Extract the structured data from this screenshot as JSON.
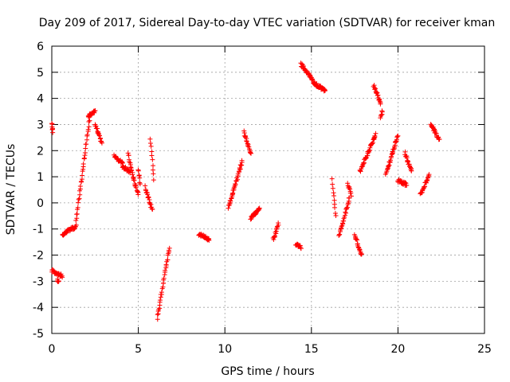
{
  "chart_data": {
    "type": "scatter",
    "title": "Day 209 of 2017, Sidereal Day-to-day VTEC variation (SDTVAR) for receiver kman",
    "xlabel": "GPS time / hours",
    "ylabel": "SDTVAR / TECUs",
    "xlim": [
      0,
      25
    ],
    "ylim": [
      -5,
      6
    ],
    "xticks": [
      0,
      5,
      10,
      15,
      20,
      25
    ],
    "xtick_labels": [
      "0",
      "5",
      "10",
      "15",
      "20",
      "25"
    ],
    "yticks": [
      -5,
      -4,
      -3,
      -2,
      -1,
      0,
      1,
      2,
      3,
      4,
      5,
      6
    ],
    "ytick_labels": [
      "-5",
      "-4",
      "-3",
      "-2",
      "-1",
      "0",
      "1",
      "2",
      "3",
      "4",
      "5",
      "6"
    ],
    "grid": true,
    "marker": "+",
    "marker_color": "#ff0000",
    "segments": [
      {
        "x0": 0.0,
        "x1": 0.05,
        "y0": 3.05,
        "y1": 2.7
      },
      {
        "x0": 0.0,
        "x1": 0.6,
        "y0": -2.6,
        "y1": -2.8
      },
      {
        "x0": 0.3,
        "x1": 0.4,
        "y0": -2.95,
        "y1": -3.05
      },
      {
        "x0": 0.6,
        "x1": 1.4,
        "y0": -1.2,
        "y1": -0.9
      },
      {
        "x0": 1.4,
        "x1": 2.2,
        "y0": -0.7,
        "y1": 3.3
      },
      {
        "x0": 2.1,
        "x1": 2.5,
        "y0": 3.3,
        "y1": 3.5
      },
      {
        "x0": 2.5,
        "x1": 2.9,
        "y0": 3.0,
        "y1": 2.3
      },
      {
        "x0": 3.6,
        "x1": 4.1,
        "y0": 1.8,
        "y1": 1.5
      },
      {
        "x0": 4.1,
        "x1": 4.5,
        "y0": 1.4,
        "y1": 1.2
      },
      {
        "x0": 4.4,
        "x1": 4.7,
        "y0": 1.9,
        "y1": 1.0
      },
      {
        "x0": 4.7,
        "x1": 5.0,
        "y0": 1.0,
        "y1": 0.3
      },
      {
        "x0": 5.0,
        "x1": 5.1,
        "y0": 1.3,
        "y1": 0.7
      },
      {
        "x0": 5.4,
        "x1": 5.8,
        "y0": 0.6,
        "y1": -0.3
      },
      {
        "x0": 5.7,
        "x1": 5.9,
        "y0": 2.5,
        "y1": 0.9
      },
      {
        "x0": 6.1,
        "x1": 6.8,
        "y0": -4.4,
        "y1": -1.7
      },
      {
        "x0": 8.5,
        "x1": 9.1,
        "y0": -1.2,
        "y1": -1.4
      },
      {
        "x0": 10.2,
        "x1": 11.0,
        "y0": -0.2,
        "y1": 1.6
      },
      {
        "x0": 11.1,
        "x1": 11.5,
        "y0": 2.7,
        "y1": 1.9
      },
      {
        "x0": 11.5,
        "x1": 12.0,
        "y0": -0.6,
        "y1": -0.2
      },
      {
        "x0": 12.8,
        "x1": 13.1,
        "y0": -1.4,
        "y1": -0.8
      },
      {
        "x0": 14.1,
        "x1": 14.4,
        "y0": -1.6,
        "y1": -1.7
      },
      {
        "x0": 14.4,
        "x1": 15.1,
        "y0": 5.3,
        "y1": 4.7
      },
      {
        "x0": 15.1,
        "x1": 15.8,
        "y0": 4.6,
        "y1": 4.3
      },
      {
        "x0": 16.2,
        "x1": 16.4,
        "y0": 0.9,
        "y1": -0.5
      },
      {
        "x0": 16.6,
        "x1": 17.2,
        "y0": -1.3,
        "y1": 0.2
      },
      {
        "x0": 17.1,
        "x1": 17.3,
        "y0": 0.7,
        "y1": 0.3
      },
      {
        "x0": 17.5,
        "x1": 17.9,
        "y0": -1.2,
        "y1": -2.0
      },
      {
        "x0": 17.8,
        "x1": 18.7,
        "y0": 1.2,
        "y1": 2.6
      },
      {
        "x0": 18.6,
        "x1": 19.0,
        "y0": 4.5,
        "y1": 3.8
      },
      {
        "x0": 19.0,
        "x1": 19.1,
        "y0": 3.3,
        "y1": 3.5
      },
      {
        "x0": 19.3,
        "x1": 20.0,
        "y0": 1.1,
        "y1": 2.6
      },
      {
        "x0": 20.0,
        "x1": 20.5,
        "y0": 0.85,
        "y1": 0.7
      },
      {
        "x0": 20.4,
        "x1": 20.8,
        "y0": 1.9,
        "y1": 1.2
      },
      {
        "x0": 21.3,
        "x1": 21.8,
        "y0": 0.3,
        "y1": 1.1
      },
      {
        "x0": 21.9,
        "x1": 22.4,
        "y0": 3.0,
        "y1": 2.4
      }
    ]
  }
}
